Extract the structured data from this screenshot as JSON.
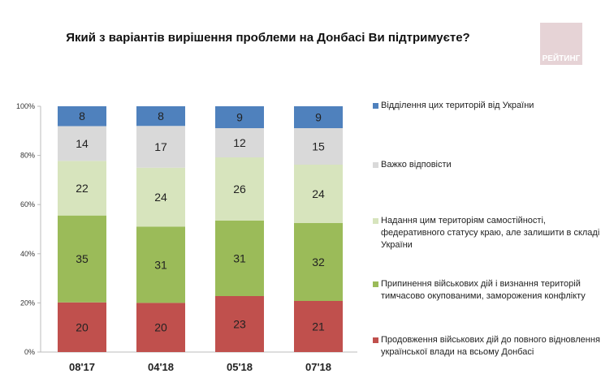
{
  "title": "Який з варіантів вирішення проблеми на Донбасі Ви підтримуєте?",
  "logo_text": "РЕЙТИНГ",
  "chart_data": {
    "type": "bar",
    "stacked": true,
    "categories": [
      "08'17",
      "04'18",
      "05'18",
      "07'18"
    ],
    "ylim": [
      0,
      100
    ],
    "yticks": [
      "0%",
      "20%",
      "40%",
      "60%",
      "80%",
      "100%"
    ],
    "series": [
      {
        "name": "Продовження військових дій до повного відновлення української влади на всьому Донбасі",
        "color": "#c0504d",
        "values": [
          20,
          20,
          23,
          21
        ]
      },
      {
        "name": "Припинення військових дій і визнання територій тимчасово окупованими, заморожения конфлікту",
        "color": "#9bbb59",
        "values": [
          35,
          31,
          31,
          32
        ]
      },
      {
        "name": "Надання цим територіям самостійності, федеративного статусу краю, але залишити в складі України",
        "color": "#d7e4bd",
        "values": [
          22,
          24,
          26,
          24
        ]
      },
      {
        "name": "Важко відповісти",
        "color": "#d9d9d9",
        "values": [
          14,
          17,
          12,
          15
        ]
      },
      {
        "name": "Відділення цих територій від України",
        "color": "#4f81bd",
        "values": [
          8,
          8,
          9,
          9
        ]
      }
    ]
  }
}
